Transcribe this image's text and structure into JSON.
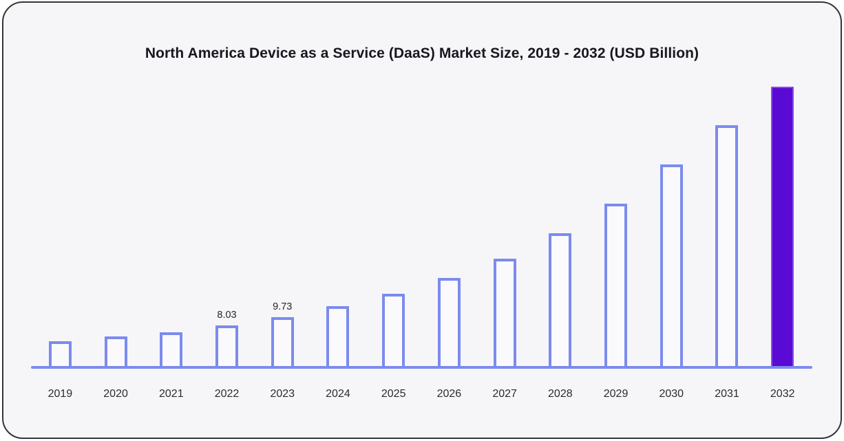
{
  "chart_data": {
    "type": "bar",
    "title": "North America Device as a Service (DaaS) Market Size, 2019 - 2032 (USD Billion)",
    "categories": [
      "2019",
      "2020",
      "2021",
      "2022",
      "2023",
      "2024",
      "2025",
      "2026",
      "2027",
      "2028",
      "2029",
      "2030",
      "2031",
      "2032"
    ],
    "values": [
      4.95,
      5.8,
      6.7,
      8.03,
      9.73,
      11.8,
      14.3,
      17.5,
      21.3,
      26.3,
      32.1,
      39.9,
      47.7,
      55.3
    ],
    "data_labels": [
      null,
      null,
      null,
      "8.03",
      "9.73",
      null,
      null,
      null,
      null,
      null,
      null,
      null,
      null,
      null
    ],
    "xlabel": "",
    "ylabel": "",
    "ylim": [
      0,
      60
    ],
    "grid": false,
    "legend": null,
    "highlight_index": 13,
    "colors": {
      "bar_outline": "#7b8bee",
      "bar_fill": "#fafafc",
      "highlight_fill": "#5a0ad5",
      "highlight_outline": "#8d4ae0",
      "axis_line": "#7b8bee",
      "card_background": "#f6f6f8",
      "card_border": "#343438",
      "title_text": "#17171f",
      "label_text": "#2a2a30"
    }
  }
}
